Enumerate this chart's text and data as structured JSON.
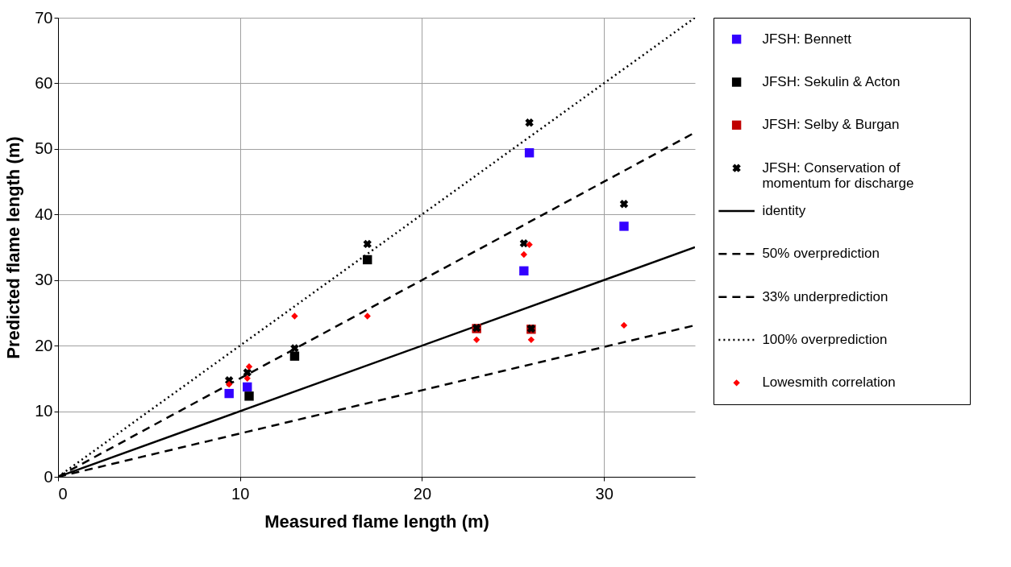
{
  "chart_data": {
    "type": "scatter",
    "xlabel": "Measured flame length (m)",
    "ylabel": "Predicted flame length (m)",
    "xlim": [
      0,
      35
    ],
    "ylim": [
      0,
      70
    ],
    "xticks": [
      0,
      10,
      20,
      30
    ],
    "yticks": [
      0,
      10,
      20,
      30,
      40,
      50,
      60,
      70
    ],
    "grid": true,
    "legend": "right",
    "series": [
      {
        "name": "JFSH: Bennett",
        "marker": "square",
        "color": "#3300ff",
        "x": [
          9.4,
          10.4,
          25.6,
          25.9,
          31.1
        ],
        "values": [
          12.7,
          13.7,
          31.4,
          49.4,
          38.2
        ]
      },
      {
        "name": "JFSH: Sekulin & Acton",
        "marker": "square",
        "color": "#000000",
        "x": [
          10.5,
          13.0,
          17.0
        ],
        "values": [
          12.3,
          18.4,
          33.1
        ]
      },
      {
        "name": "JFSH: Selby & Burgan",
        "marker": "square",
        "color": "#c00000",
        "x": [
          23.0,
          26.0
        ],
        "values": [
          22.6,
          22.5
        ]
      },
      {
        "name": "JFSH: Conservation of momentum for discharge",
        "marker": "cross",
        "color": "#000000",
        "x": [
          9.4,
          10.4,
          13.0,
          17.0,
          25.9,
          25.6,
          23.0,
          26.0,
          31.1
        ],
        "values": [
          14.7,
          15.9,
          19.6,
          35.5,
          54.0,
          35.6,
          22.7,
          22.6,
          41.6
        ]
      },
      {
        "name": "identity",
        "type": "line",
        "line_style": "solid",
        "color": "#000000",
        "x": [
          0,
          35
        ],
        "values": [
          0,
          35
        ]
      },
      {
        "name": "50% overprediction",
        "type": "line",
        "line_style": "dashed",
        "color": "#000000",
        "x": [
          0,
          35
        ],
        "values": [
          0,
          52.5
        ]
      },
      {
        "name": "33% underprediction",
        "type": "line",
        "line_style": "dashed",
        "color": "#000000",
        "x": [
          0,
          35
        ],
        "values": [
          0,
          23.1
        ]
      },
      {
        "name": "100% overprediction",
        "type": "line",
        "line_style": "dotted",
        "color": "#000000",
        "x": [
          0,
          35
        ],
        "values": [
          0,
          70
        ]
      },
      {
        "name": "Lowesmith correlation",
        "marker": "diamond",
        "color": "#ff0000",
        "x": [
          9.4,
          10.4,
          10.5,
          13.0,
          17.0,
          25.9,
          25.6,
          23.0,
          26.0,
          31.1
        ],
        "values": [
          14.1,
          15.0,
          16.8,
          24.5,
          24.5,
          35.4,
          33.9,
          20.9,
          20.9,
          23.1
        ]
      }
    ]
  }
}
